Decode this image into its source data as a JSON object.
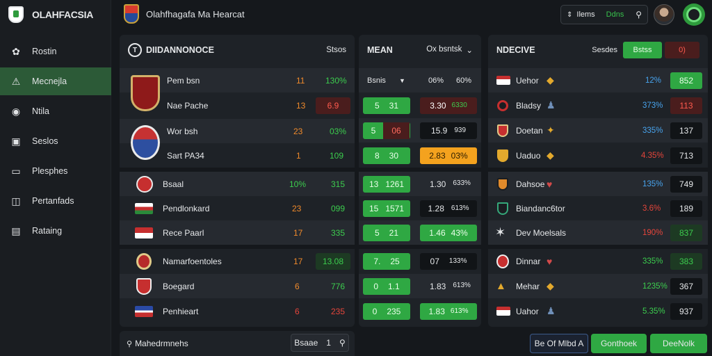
{
  "app": {
    "name": "OLAHFACSIA",
    "title": "Olahfhagafa Ma Hearcat"
  },
  "search": {
    "label": "Ilems",
    "accent": "Ddns"
  },
  "colors": {
    "accent": "#2fa843",
    "active_nav": "#2c5a37",
    "orange": "#f08a2b",
    "red": "#e5453b",
    "blue": "#48a4ee",
    "amber": "#f4a21e"
  },
  "sidebar": {
    "items": [
      {
        "label": "Rostin",
        "icon": "leaf-icon"
      },
      {
        "label": "Mecnejla",
        "icon": "warning-icon",
        "active": true
      },
      {
        "label": "Ntila",
        "icon": "globe-icon"
      },
      {
        "label": "Seslos",
        "icon": "monitor-icon"
      },
      {
        "label": "Plesphes",
        "icon": "device-icon"
      },
      {
        "label": "Pertanfads",
        "icon": "document-icon"
      },
      {
        "label": "Rataing",
        "icon": "chart-icon"
      }
    ]
  },
  "panel_left": {
    "title": "DIIDANNONOCE",
    "action": "Stsos",
    "rows": [
      {
        "name": "Pem bsn",
        "v1": "11",
        "v2": "130%"
      },
      {
        "name": "Nae Pache",
        "v1": "13",
        "v2": "6.9"
      },
      {
        "name": "Wor bsh",
        "v1": "23",
        "v2": "03%"
      },
      {
        "name": "Sart PA34",
        "v1": "1",
        "v2": "109"
      },
      {
        "name": "Bsaal",
        "v1": "10%",
        "v2": "315"
      },
      {
        "name": "Pendlonkard",
        "v1": "23",
        "v2": "099"
      },
      {
        "name": "Rece Paarl",
        "v1": "17",
        "v2": "335"
      },
      {
        "name": "Namarfoentoles",
        "v1": "17",
        "v2": "13.08"
      },
      {
        "name": "Boegard",
        "v1": "6",
        "v2": "776"
      },
      {
        "name": "Penhieart",
        "v1": "6",
        "v2": "235"
      }
    ]
  },
  "panel_mid": {
    "title": "MEAN",
    "dropdown": "Ox bsntsk",
    "header": {
      "a": "Bsnis",
      "b": "06%",
      "c": "60%"
    },
    "rows": [
      {
        "a": "5",
        "b": "31",
        "c": "3.30",
        "d": "6330"
      },
      {
        "a": "5",
        "b": "06",
        "c": "15.9",
        "d": "939"
      },
      {
        "a": "8",
        "b": "30",
        "c": "2.83",
        "d": "03%"
      },
      {
        "a": "13",
        "b": "1261",
        "c": "1.30",
        "d": "633%"
      },
      {
        "a": "15",
        "b": "1571",
        "c": "1.28",
        "d": "613%"
      },
      {
        "a": "5",
        "b": "21",
        "c": "1.46",
        "d": "43%"
      },
      {
        "a": "7.",
        "b": "25",
        "c": "07",
        "d": "133%"
      },
      {
        "a": "0",
        "b": "1.1",
        "c": "1.83",
        "d": "613%"
      },
      {
        "a": "0",
        "b": "235",
        "c": "1.83",
        "d": "613%"
      }
    ]
  },
  "panel_right": {
    "title": "NDECIVE",
    "action1": "Sesdes",
    "action2": "Bstss",
    "action3": "0)",
    "rows": [
      {
        "name": "Uehor",
        "pct": "12%",
        "val": "852"
      },
      {
        "name": "Bladsy",
        "pct": "373%",
        "val": "113"
      },
      {
        "name": "Doetan",
        "pct": "335%",
        "val": "137"
      },
      {
        "name": "Uaduo",
        "pct": "4.35%",
        "val": "713"
      },
      {
        "name": "Dahsoe",
        "pct": "135%",
        "val": "749"
      },
      {
        "name": "Biandanc6tor",
        "pct": "3.6%",
        "val": "189"
      },
      {
        "name": "Dev Moelsals",
        "pct": "190%",
        "val": "837"
      },
      {
        "name": "Dinnar",
        "pct": "335%",
        "val": "383"
      },
      {
        "name": "Mehar",
        "pct": "1235%",
        "val": "367"
      },
      {
        "name": "Uahor",
        "pct": "5.35%",
        "val": "937"
      }
    ]
  },
  "bottom": {
    "search_label": "Mahedrmnehs",
    "btn_label": "Bsaae",
    "btn_num": "1",
    "action_outline": "Be Of Mlbd A",
    "action_green1": "Gonthoek",
    "action_green2": "DeeNolk"
  }
}
